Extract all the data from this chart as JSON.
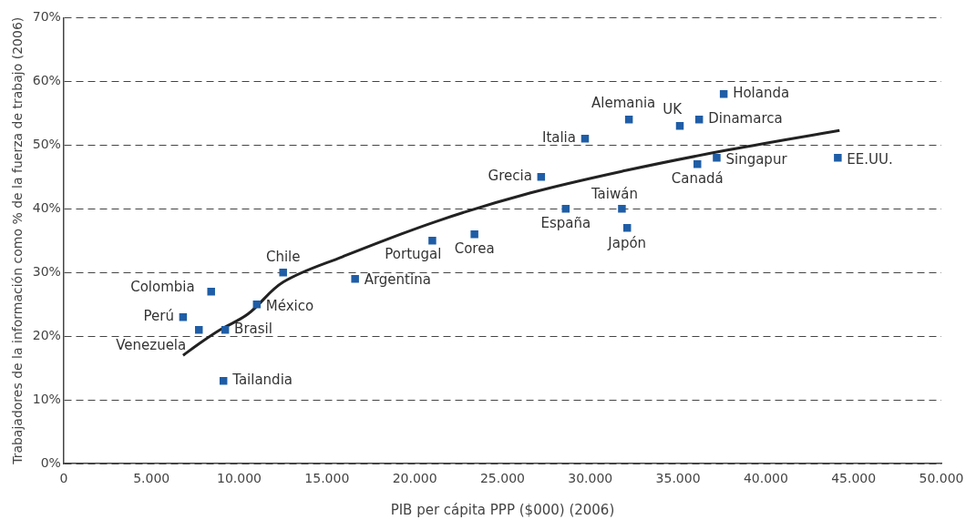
{
  "chart_data": {
    "type": "scatter",
    "xlabel": "PIB per cápita PPP ($000) (2006)",
    "ylabel": "Trabajadores de la información como % de la fuerza de trabajo (2006)",
    "xlim": [
      0,
      50000
    ],
    "xticks": [
      0,
      {
        "value": 5000,
        "label": "5.000"
      },
      {
        "value": 10000,
        "label": "10.000"
      },
      {
        "value": 15000,
        "label": "15.000"
      },
      {
        "value": 20000,
        "label": "20.000"
      },
      {
        "value": 25000,
        "label": "25.000"
      },
      {
        "value": 30000,
        "label": "30.000"
      },
      {
        "value": 35000,
        "label": "35.000"
      },
      {
        "value": 40000,
        "label": "40.000"
      },
      {
        "value": 45000,
        "label": "45.000"
      },
      {
        "value": 50000,
        "label": "50.000"
      }
    ],
    "ylim": [
      0,
      70
    ],
    "yticks": [
      {
        "value": 0,
        "label": "0%"
      },
      {
        "value": 10,
        "label": "10%"
      },
      {
        "value": 20,
        "label": "20%"
      },
      {
        "value": 30,
        "label": "30%"
      },
      {
        "value": 40,
        "label": "40%"
      },
      {
        "value": 50,
        "label": "50%"
      },
      {
        "value": 60,
        "label": "60%"
      },
      {
        "value": 70,
        "label": "70%"
      }
    ],
    "grid": "y",
    "marker": "square",
    "series": [
      {
        "color": "#1f5da6",
        "x": [
          6800,
          7700,
          8400,
          9200,
          9100,
          11000,
          12500,
          16600,
          21000,
          23400,
          27200,
          28600,
          29700,
          31800,
          32100,
          32200,
          35100,
          36100,
          36200,
          37200,
          37600,
          44100
        ],
        "values": [
          23,
          21,
          27,
          21,
          13,
          25,
          30,
          29,
          35,
          36,
          45,
          40,
          51,
          40,
          37,
          54,
          53,
          47,
          54,
          48,
          58,
          48
        ]
      },
      {
        "type": "line",
        "color": "#222222",
        "line_style": "solid",
        "marker": "none",
        "x": [
          6800,
          7800,
          8900,
          10500,
          12500,
          15900,
          21200,
          26600,
          32000,
          37400,
          44200
        ],
        "values": [
          17,
          19,
          21,
          23.5,
          28.5,
          32.5,
          38,
          42.5,
          46,
          49,
          52.3
        ]
      }
    ],
    "annotations": [
      {
        "text": "Perú",
        "x": 6800,
        "y": 23
      },
      {
        "text": "Venezuela",
        "x": 7700,
        "y": 21
      },
      {
        "text": "Colombia",
        "x": 8400,
        "y": 27
      },
      {
        "text": "Brasil",
        "x": 9200,
        "y": 21
      },
      {
        "text": "Tailandia",
        "x": 9100,
        "y": 13
      },
      {
        "text": "México",
        "x": 11000,
        "y": 25
      },
      {
        "text": "Chile",
        "x": 12500,
        "y": 30
      },
      {
        "text": "Argentina",
        "x": 16600,
        "y": 29
      },
      {
        "text": "Portugal",
        "x": 21000,
        "y": 35
      },
      {
        "text": "Corea",
        "x": 23400,
        "y": 36
      },
      {
        "text": "Grecia",
        "x": 27200,
        "y": 45
      },
      {
        "text": "España",
        "x": 28600,
        "y": 40
      },
      {
        "text": "Italia",
        "x": 29700,
        "y": 51
      },
      {
        "text": "Taiwán",
        "x": 31800,
        "y": 40
      },
      {
        "text": "Japón",
        "x": 32100,
        "y": 37
      },
      {
        "text": "Alemania",
        "x": 32200,
        "y": 54
      },
      {
        "text": "UK",
        "x": 35100,
        "y": 53
      },
      {
        "text": "Canadá",
        "x": 36100,
        "y": 47
      },
      {
        "text": "Dinamarca",
        "x": 36200,
        "y": 54
      },
      {
        "text": "Singapur",
        "x": 37200,
        "y": 48
      },
      {
        "text": "Holanda",
        "x": 37600,
        "y": 58
      },
      {
        "text": "EE.UU.",
        "x": 44100,
        "y": 48
      }
    ]
  }
}
